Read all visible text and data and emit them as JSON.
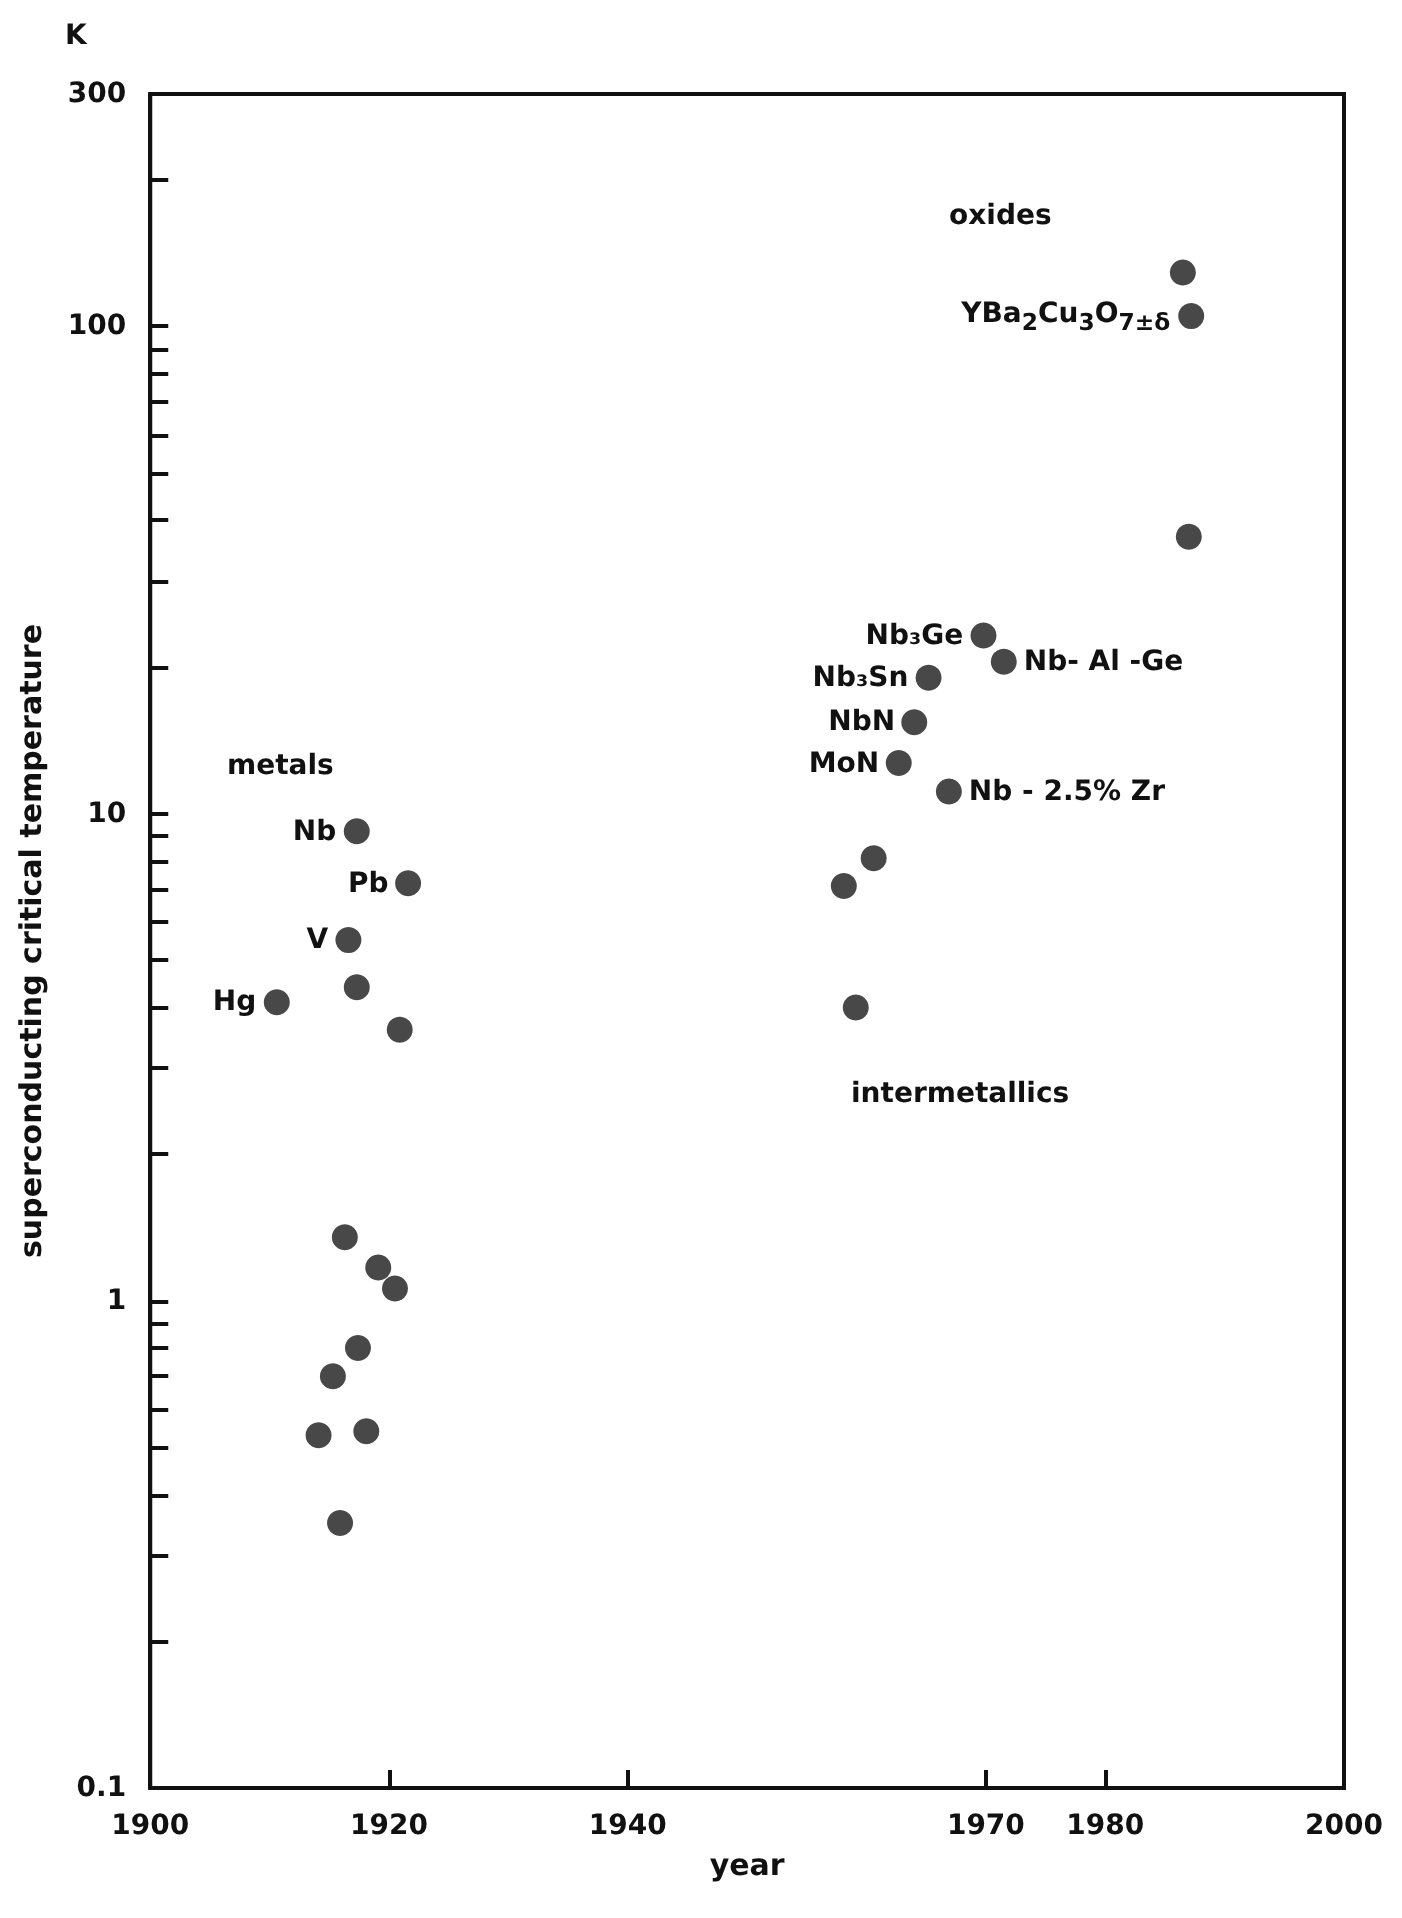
{
  "chart_data": {
    "type": "scatter",
    "xlabel": "year",
    "ylabel": "superconducting critical temperature",
    "log": "y",
    "marker": "circle",
    "xlim": [
      1900,
      2000
    ],
    "xticks": [
      1900,
      1920,
      1940,
      1970,
      1980,
      2000
    ],
    "ylim": [
      0.1,
      300
    ],
    "yticks": [
      0.1,
      {
        "value": 0.2,
        "label": null
      },
      {
        "value": 0.3,
        "label": null
      },
      {
        "value": 0.4,
        "label": null
      },
      {
        "value": 0.5,
        "label": null
      },
      {
        "value": 0.6,
        "label": null
      },
      {
        "value": 0.7,
        "label": null
      },
      {
        "value": 0.8,
        "label": null
      },
      {
        "value": 0.9,
        "label": null
      },
      1,
      {
        "value": 2,
        "label": null
      },
      {
        "value": 3,
        "label": null
      },
      {
        "value": 4,
        "label": null
      },
      {
        "value": 5,
        "label": null
      },
      {
        "value": 6,
        "label": null
      },
      {
        "value": 7,
        "label": null
      },
      {
        "value": 8,
        "label": null
      },
      {
        "value": 9,
        "label": null
      },
      10,
      {
        "value": 20,
        "label": null
      },
      {
        "value": 30,
        "label": null
      },
      {
        "value": 40,
        "label": null
      },
      {
        "value": 50,
        "label": null
      },
      {
        "value": 60,
        "label": null
      },
      {
        "value": 70,
        "label": null
      },
      {
        "value": 80,
        "label": null
      },
      {
        "value": 90,
        "label": null
      },
      100,
      {
        "value": 200,
        "label": null
      },
      300
    ],
    "series": [
      {
        "color": "#1a1a1a",
        "x": [
          1917.3,
          1921.6,
          1916.6,
          1910.6,
          1917.3,
          1920.9,
          1916.3,
          1919.1,
          1920.5,
          1917.4,
          1915.3,
          1914.1,
          1918.1,
          1915.9,
          1969.8,
          1971.5,
          1965.2,
          1964,
          1962.7,
          1966.9,
          1960.6,
          1958.1,
          1959.1,
          1986.5,
          1987.2,
          1987
        ],
        "values": [
          9.2,
          7.2,
          5.5,
          4.1,
          4.4,
          3.6,
          1.35,
          1.17,
          1.06,
          0.8,
          0.7,
          0.53,
          0.54,
          0.35,
          23.2,
          20.5,
          19,
          15.4,
          12.7,
          11.1,
          8.1,
          7.1,
          4,
          129,
          105,
          37
        ]
      }
    ],
    "annotations": [
      "K",
      "metals",
      "intermetallics",
      "oxides",
      {
        "text": "Nb",
        "x": 1917.3,
        "y": 9.2
      },
      {
        "text": "Pb",
        "x": 1921.6,
        "y": 7.2
      },
      {
        "text": "V",
        "x": 1916.6,
        "y": 5.5
      },
      {
        "text": "Hg",
        "x": 1910.6,
        "y": 4.1
      },
      {
        "text": "Nb₃Ge",
        "x": 1969.8,
        "y": 23.2
      },
      {
        "text": "Nb₃Sn",
        "x": 1965.2,
        "y": 19
      },
      {
        "text": "NbN",
        "x": 1964,
        "y": 15.4
      },
      {
        "text": "MoN",
        "x": 1962.7,
        "y": 12.7
      },
      {
        "text": "Nb- Al -Ge",
        "x": 1971.5,
        "y": 20.5
      },
      {
        "text": "Nb - 2.5% Zr",
        "x": 1966.9,
        "y": 11.1
      },
      {
        "text": "YBa$_{2}$Cu$_{3}$O$_{7±δ}$",
        "x": 1987.2,
        "y": 105
      }
    ]
  }
}
